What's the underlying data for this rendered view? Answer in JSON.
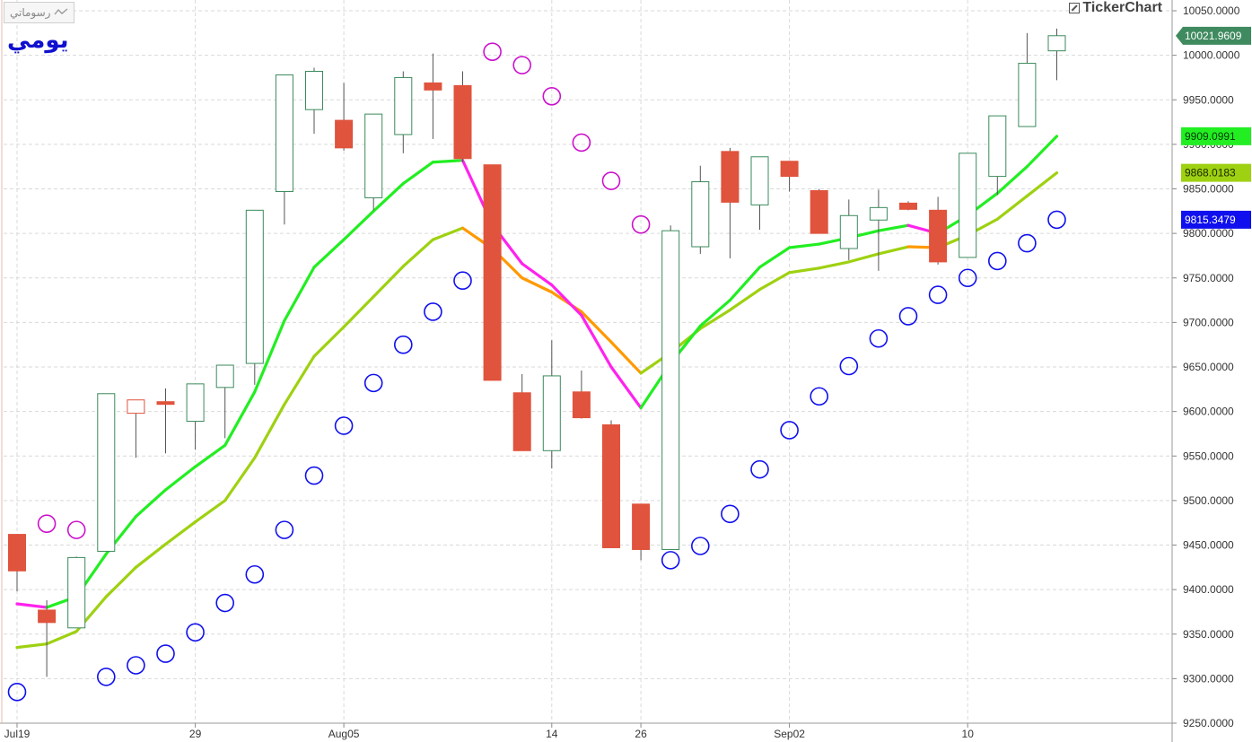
{
  "period_label": "يومي",
  "drawings_tab": {
    "label": "رسوماتي",
    "icon": "zigzag-line-icon"
  },
  "brand": {
    "name": "TickerChart",
    "icon": "chart-logo-icon"
  },
  "chart_data": {
    "type": "candlestick",
    "y_axis": {
      "range": [
        9250,
        10050
      ],
      "ticks": [
        "10050.0000",
        "10000.0000",
        "9950.0000",
        "9900.0000",
        "9850.0000",
        "9800.0000",
        "9750.0000",
        "9700.0000",
        "9650.0000",
        "9600.0000",
        "9550.0000",
        "9500.0000",
        "9450.0000",
        "9400.0000",
        "9350.0000",
        "9300.0000",
        "9250.0000"
      ]
    },
    "x_axis": {
      "tick_labels": [
        {
          "label": "Jul19",
          "bar": 0
        },
        {
          "label": "29",
          "bar": 6
        },
        {
          "label": "Aug05",
          "bar": 11
        },
        {
          "label": "14",
          "bar": 18
        },
        {
          "label": "26",
          "bar": 21
        },
        {
          "label": "Sep02",
          "bar": 26
        },
        {
          "label": "10",
          "bar": 32
        }
      ]
    },
    "grid": true,
    "colors": {
      "up": "#3a8a5c",
      "down": "#e0533c",
      "grid": "#d9d9d9"
    },
    "candles": [
      {
        "o": 9462,
        "h": 9462,
        "l": 9398,
        "c": 9421
      },
      {
        "o": 9377,
        "h": 9388,
        "l": 9302,
        "c": 9363
      },
      {
        "o": 9357,
        "h": 9437,
        "l": 9357,
        "c": 9436
      },
      {
        "o": 9443,
        "h": 9620,
        "l": 9443,
        "c": 9620
      },
      {
        "o": 9613,
        "h": 9613,
        "l": 9548,
        "c": 9598
      },
      {
        "o": 9611,
        "h": 9626,
        "l": 9553,
        "c": 9608
      },
      {
        "o": 9589,
        "h": 9631,
        "l": 9557,
        "c": 9631
      },
      {
        "o": 9627,
        "h": 9652,
        "l": 9570,
        "c": 9652
      },
      {
        "o": 9654,
        "h": 9826,
        "l": 9630,
        "c": 9826
      },
      {
        "o": 9847,
        "h": 9978,
        "l": 9810,
        "c": 9978
      },
      {
        "o": 9939,
        "h": 9986,
        "l": 9912,
        "c": 9982
      },
      {
        "o": 9927,
        "h": 9969,
        "l": 9893,
        "c": 9896
      },
      {
        "o": 9840,
        "h": 9934,
        "l": 9826,
        "c": 9934
      },
      {
        "o": 9911,
        "h": 9982,
        "l": 9890,
        "c": 9975
      },
      {
        "o": 9969,
        "h": 10002,
        "l": 9906,
        "c": 9961
      },
      {
        "o": 9966,
        "h": 9982,
        "l": 9880,
        "c": 9884
      },
      {
        "o": 9877,
        "h": 9877,
        "l": 9635,
        "c": 9635
      },
      {
        "o": 9621,
        "h": 9642,
        "l": 9556,
        "c": 9556
      },
      {
        "o": 9556,
        "h": 9680,
        "l": 9536,
        "c": 9640
      },
      {
        "o": 9622,
        "h": 9646,
        "l": 9592,
        "c": 9593
      },
      {
        "o": 9585,
        "h": 9590,
        "l": 9447,
        "c": 9447
      },
      {
        "o": 9496,
        "h": 9496,
        "l": 9433,
        "c": 9445
      },
      {
        "o": 9445,
        "h": 9809,
        "l": 9445,
        "c": 9803
      },
      {
        "o": 9785,
        "h": 9876,
        "l": 9777,
        "c": 9858
      },
      {
        "o": 9892,
        "h": 9896,
        "l": 9772,
        "c": 9835
      },
      {
        "o": 9832,
        "h": 9886,
        "l": 9804,
        "c": 9886
      },
      {
        "o": 9881,
        "h": 9881,
        "l": 9847,
        "c": 9864
      },
      {
        "o": 9848,
        "h": 9850,
        "l": 9800,
        "c": 9800
      },
      {
        "o": 9783,
        "h": 9838,
        "l": 9770,
        "c": 9820
      },
      {
        "o": 9815,
        "h": 9849,
        "l": 9758,
        "c": 9829
      },
      {
        "o": 9834,
        "h": 9836,
        "l": 9826,
        "c": 9827
      },
      {
        "o": 9826,
        "h": 9841,
        "l": 9765,
        "c": 9768
      },
      {
        "o": 9773,
        "h": 9890,
        "l": 9773,
        "c": 9890
      },
      {
        "o": 9864,
        "h": 9932,
        "l": 9843,
        "c": 9932
      },
      {
        "o": 9920,
        "h": 10025,
        "l": 9920,
        "c": 9991
      },
      {
        "o": 10005,
        "h": 10030,
        "l": 9972,
        "c": 10022
      }
    ],
    "fast_ma": {
      "values": [
        9384,
        9380,
        9392,
        9440,
        9482,
        9512,
        9538,
        9562,
        9622,
        9702,
        9762,
        9793,
        9825,
        9856,
        9880,
        9882,
        9810,
        9766,
        9742,
        9708,
        9650,
        9604,
        9654,
        9696,
        9725,
        9762,
        9784,
        9788,
        9795,
        9803,
        9809,
        9800,
        9820,
        9845,
        9875,
        9909.0991
      ],
      "colors": {
        "up": "#22ee22",
        "down": "#ff22ee"
      }
    },
    "slow_ma": {
      "values": [
        9335,
        9339,
        9353,
        9392,
        9425,
        9451,
        9476,
        9500,
        9548,
        9608,
        9662,
        9695,
        9729,
        9763,
        9793,
        9806,
        9783,
        9750,
        9734,
        9712,
        9678,
        9643,
        9666,
        9693,
        9714,
        9737,
        9756,
        9761,
        9768,
        9777,
        9785,
        9784,
        9798,
        9816,
        9842,
        9868.0183
      ],
      "colors": {
        "up": "#9ed111",
        "down": "#ff9900"
      }
    },
    "parabolic_sar": {
      "values": [
        9285,
        9474,
        9467,
        9302,
        9315,
        9328,
        9352,
        9385,
        9417,
        9467,
        9528,
        9584,
        9632,
        9675,
        9712,
        9747,
        10004,
        9989,
        9954,
        9902,
        9859,
        9810,
        9433,
        9449,
        9485,
        9535,
        9579,
        9617,
        9651,
        9682,
        9707,
        9731,
        9750,
        9769,
        9789,
        9815.3479
      ],
      "colors": {
        "below": "#1010ee",
        "above": "#cc11cc"
      }
    },
    "price_badges": [
      {
        "value": "10021.9609",
        "bg": "#3f8a5f",
        "fg": "#ffffff"
      },
      {
        "value": "9909.0991",
        "bg": "#22ee22",
        "fg": "#0a3a0a"
      },
      {
        "value": "9868.0183",
        "bg": "#9ed111",
        "fg": "#1a2a00"
      },
      {
        "value": "9815.3479",
        "bg": "#1010ee",
        "fg": "#ffffff"
      }
    ]
  }
}
